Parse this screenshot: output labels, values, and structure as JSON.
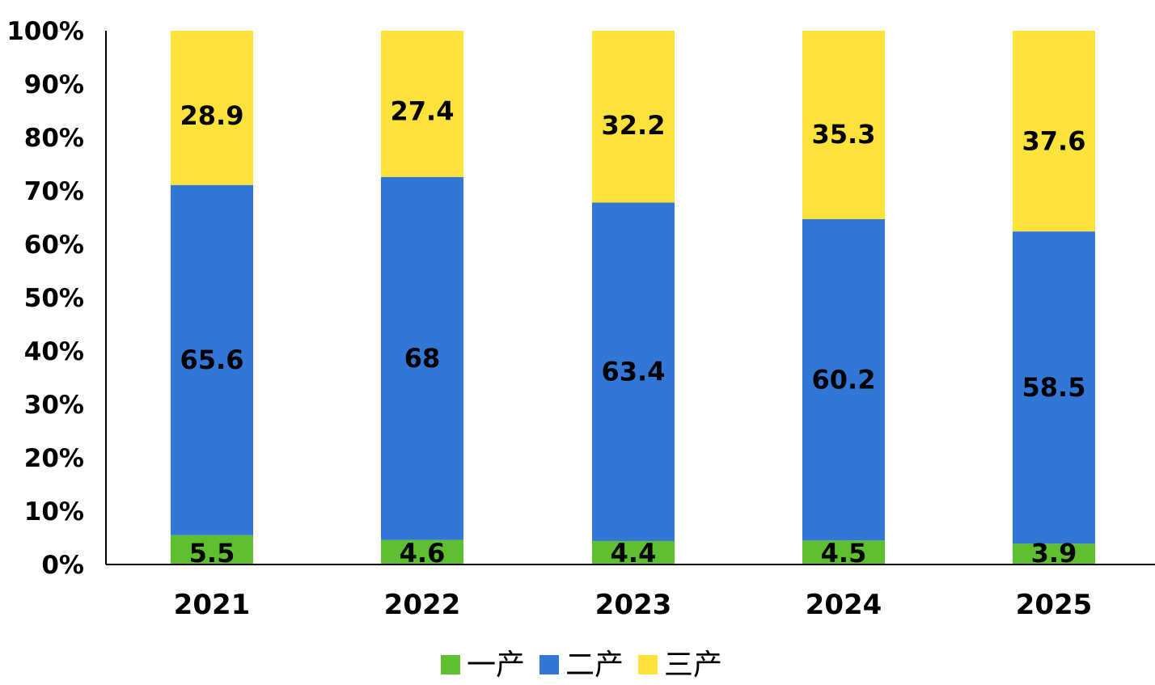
{
  "chart_data": {
    "type": "bar",
    "stacked": true,
    "percent": true,
    "categories": [
      "2021",
      "2022",
      "2023",
      "2024",
      "2025"
    ],
    "series": [
      {
        "name": "一产",
        "color": "#5ec02f",
        "values": [
          5.5,
          4.6,
          4.4,
          4.5,
          3.9
        ]
      },
      {
        "name": "二产",
        "color": "#3377d6",
        "values": [
          65.6,
          68,
          63.4,
          60.2,
          58.5
        ]
      },
      {
        "name": "三产",
        "color": "#fce23a",
        "values": [
          28.9,
          27.4,
          32.2,
          35.3,
          37.6
        ]
      }
    ],
    "y_ticks": [
      "0%",
      "10%",
      "20%",
      "30%",
      "40%",
      "50%",
      "60%",
      "70%",
      "80%",
      "90%",
      "100%"
    ],
    "ylim": [
      0,
      100
    ],
    "grid": false,
    "legend_position": "bottom",
    "title": "",
    "xlabel": "",
    "ylabel": ""
  }
}
